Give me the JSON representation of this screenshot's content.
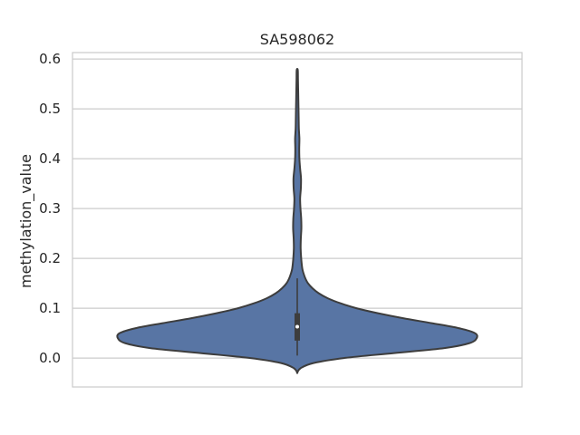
{
  "chart_data": {
    "type": "violin",
    "title": "SA598062",
    "xlabel": "",
    "ylabel": "methylation_value",
    "ylim": [
      -0.058,
      0.613
    ],
    "yticks": [
      0.0,
      0.1,
      0.2,
      0.3,
      0.4,
      0.5,
      0.6
    ],
    "ytick_labels": [
      "0.0",
      "0.1",
      "0.2",
      "0.3",
      "0.4",
      "0.5",
      "0.6"
    ],
    "grid": true,
    "series": [
      {
        "fill_color": "#5875a4",
        "edge_color": "#3d3d3d",
        "density_profile": [
          {
            "y": -0.029,
            "half_width": 0.0
          },
          {
            "y": -0.02,
            "half_width": 0.02
          },
          {
            "y": -0.01,
            "half_width": 0.09
          },
          {
            "y": 0.0,
            "half_width": 0.26
          },
          {
            "y": 0.01,
            "half_width": 0.54
          },
          {
            "y": 0.02,
            "half_width": 0.82
          },
          {
            "y": 0.03,
            "half_width": 0.96
          },
          {
            "y": 0.04,
            "half_width": 1.0
          },
          {
            "y": 0.05,
            "half_width": 0.99
          },
          {
            "y": 0.06,
            "half_width": 0.9
          },
          {
            "y": 0.07,
            "half_width": 0.75
          },
          {
            "y": 0.08,
            "half_width": 0.59
          },
          {
            "y": 0.09,
            "half_width": 0.45
          },
          {
            "y": 0.1,
            "half_width": 0.33
          },
          {
            "y": 0.11,
            "half_width": 0.24
          },
          {
            "y": 0.12,
            "half_width": 0.17
          },
          {
            "y": 0.13,
            "half_width": 0.12
          },
          {
            "y": 0.14,
            "half_width": 0.085
          },
          {
            "y": 0.15,
            "half_width": 0.06
          },
          {
            "y": 0.16,
            "half_width": 0.045
          },
          {
            "y": 0.17,
            "half_width": 0.035
          },
          {
            "y": 0.18,
            "half_width": 0.028
          },
          {
            "y": 0.2,
            "half_width": 0.022
          },
          {
            "y": 0.22,
            "half_width": 0.019
          },
          {
            "y": 0.24,
            "half_width": 0.02
          },
          {
            "y": 0.26,
            "half_width": 0.023
          },
          {
            "y": 0.28,
            "half_width": 0.022
          },
          {
            "y": 0.3,
            "half_width": 0.018
          },
          {
            "y": 0.32,
            "half_width": 0.016
          },
          {
            "y": 0.34,
            "half_width": 0.02
          },
          {
            "y": 0.36,
            "half_width": 0.021
          },
          {
            "y": 0.38,
            "half_width": 0.016
          },
          {
            "y": 0.4,
            "half_width": 0.012
          },
          {
            "y": 0.42,
            "half_width": 0.011
          },
          {
            "y": 0.44,
            "half_width": 0.012
          },
          {
            "y": 0.46,
            "half_width": 0.009
          },
          {
            "y": 0.48,
            "half_width": 0.008
          },
          {
            "y": 0.5,
            "half_width": 0.007
          },
          {
            "y": 0.52,
            "half_width": 0.006
          },
          {
            "y": 0.54,
            "half_width": 0.005
          },
          {
            "y": 0.56,
            "half_width": 0.004
          },
          {
            "y": 0.578,
            "half_width": 0.003
          }
        ],
        "box": {
          "whisker_low": 0.005,
          "q1": 0.035,
          "median": 0.063,
          "q3": 0.09,
          "whisker_high": 0.16
        }
      }
    ]
  }
}
